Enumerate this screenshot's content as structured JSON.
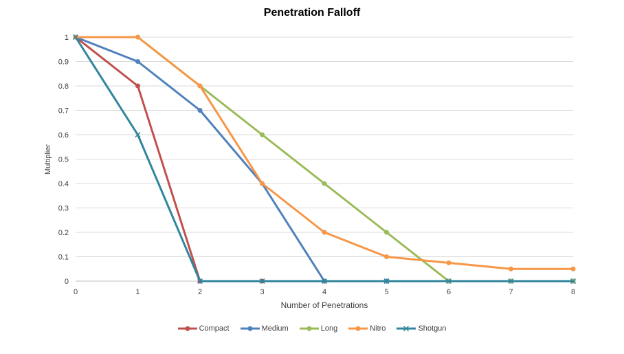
{
  "chart_data": {
    "type": "line",
    "title": "Penetration Falloff",
    "xlabel": "Number of Penetrations",
    "ylabel": "Multiplier",
    "x": [
      0,
      1,
      2,
      3,
      4,
      5,
      6,
      7,
      8
    ],
    "x_ticks": [
      "0",
      "1",
      "2",
      "3",
      "4",
      "5",
      "6",
      "7",
      "8"
    ],
    "y_ticks": [
      "0",
      "0.1",
      "0.2",
      "0.3",
      "0.4",
      "0.5",
      "0.6",
      "0.7",
      "0.8",
      "0.9",
      "1"
    ],
    "xlim": [
      0,
      8
    ],
    "ylim": [
      0,
      1
    ],
    "grid": true,
    "legend_position": "bottom",
    "series": [
      {
        "name": "Compact",
        "color": "#C0504D",
        "marker": "circle",
        "values": [
          1,
          0.8,
          0,
          0,
          0,
          0,
          0,
          0,
          0
        ]
      },
      {
        "name": "Medium",
        "color": "#4F81BD",
        "marker": "circle",
        "values": [
          1,
          0.9,
          0.7,
          0.4,
          0,
          0,
          0,
          0,
          0
        ]
      },
      {
        "name": "Long",
        "color": "#9BBB59",
        "marker": "circle",
        "values": [
          1,
          1,
          0.8,
          0.6,
          0.4,
          0.2,
          0,
          0,
          0
        ]
      },
      {
        "name": "Nitro",
        "color": "#F79646",
        "marker": "circle",
        "values": [
          1,
          1,
          0.8,
          0.4,
          0.2,
          0.1,
          0.075,
          0.05,
          0.05
        ]
      },
      {
        "name": "Shotgun",
        "color": "#31859C",
        "marker": "x",
        "values": [
          1,
          0.6,
          0,
          0,
          0,
          0,
          0,
          0,
          0
        ]
      }
    ]
  }
}
